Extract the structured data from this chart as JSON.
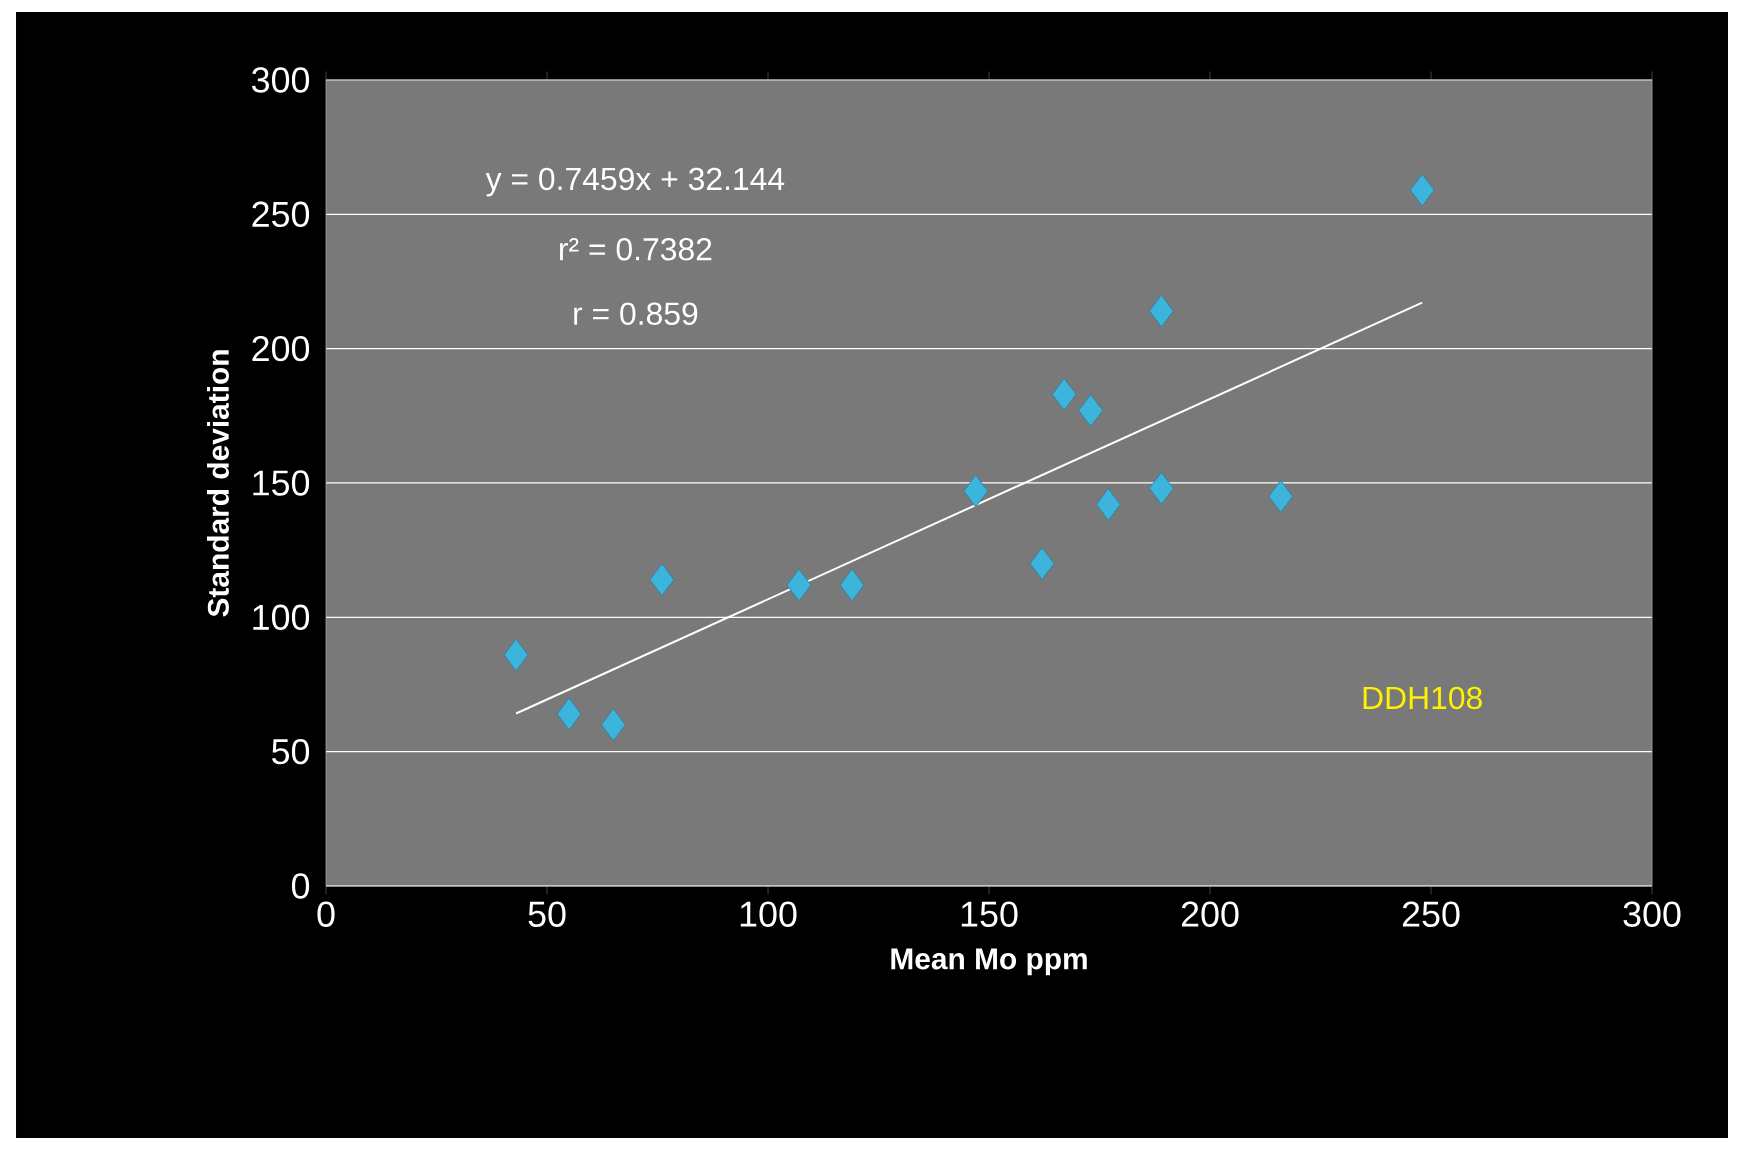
{
  "chart_data": {
    "type": "scatter",
    "xlabel": "Mean Mo ppm",
    "ylabel": "Standard deviation",
    "xlim": [
      0,
      300
    ],
    "ylim": [
      0,
      300
    ],
    "xticks": [
      0,
      50,
      100,
      150,
      200,
      250,
      300
    ],
    "yticks": [
      0,
      50,
      100,
      150,
      200,
      250,
      300
    ],
    "grid": "y",
    "marker": "diamond",
    "series": [
      {
        "color": "#3cb4dc",
        "x": [
          43,
          55,
          65,
          76,
          107,
          119,
          147,
          162,
          167,
          173,
          177,
          189,
          189,
          216,
          248
        ],
        "values": [
          86,
          64,
          60,
          114,
          112,
          112,
          147,
          120,
          183,
          177,
          142,
          214,
          148,
          145,
          259
        ]
      },
      {
        "type": "line",
        "marker": "none",
        "color": "#ffffff",
        "x": [
          43,
          248
        ],
        "values": [
          64.2,
          217.1
        ]
      }
    ],
    "annotations": [
      "y = 0.7459x + 32.144",
      "r² = 0.7382",
      "r = 0.859",
      "DDH108"
    ]
  }
}
